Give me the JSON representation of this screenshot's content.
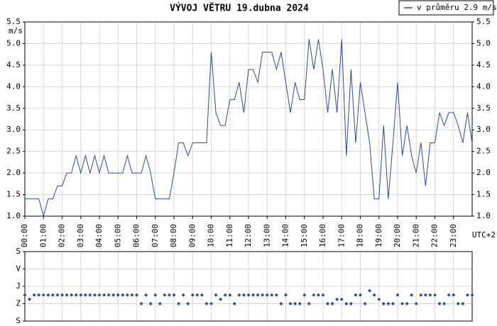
{
  "chart_data": [
    {
      "type": "line",
      "title": "VÝVOJ VĚTRU  19.dubna 2024",
      "y_unit": "m/s",
      "x_label": "UTC+2",
      "x": [
        0,
        0.25,
        0.5,
        0.75,
        1,
        1.25,
        1.5,
        1.75,
        2,
        2.25,
        2.5,
        2.75,
        3,
        3.25,
        3.5,
        3.75,
        4,
        4.25,
        4.5,
        4.75,
        5,
        5.25,
        5.5,
        5.75,
        6,
        6.25,
        6.5,
        6.75,
        7,
        7.25,
        7.5,
        7.75,
        8,
        8.25,
        8.5,
        8.75,
        9,
        9.25,
        9.5,
        9.75,
        10,
        10.25,
        10.5,
        10.75,
        11,
        11.25,
        11.5,
        11.75,
        12,
        12.25,
        12.5,
        12.75,
        13,
        13.25,
        13.5,
        13.75,
        14,
        14.25,
        14.5,
        14.75,
        15,
        15.25,
        15.5,
        15.75,
        16,
        16.25,
        16.5,
        16.75,
        17,
        17.25,
        17.5,
        17.75,
        18,
        18.25,
        18.5,
        18.75,
        19,
        19.25,
        19.5,
        19.75,
        20,
        20.25,
        20.5,
        20.75,
        21,
        21.25,
        21.5,
        21.75,
        22,
        22.25,
        22.5,
        22.75,
        23,
        23.25,
        23.5,
        23.75,
        24
      ],
      "series": [
        {
          "name": "v průměru 2.9 m/s",
          "color": "#2a4a9c",
          "values": [
            1.4,
            1.4,
            1.4,
            1.4,
            1.0,
            1.4,
            1.4,
            1.7,
            1.7,
            2.0,
            2.0,
            2.4,
            2.0,
            2.4,
            2.0,
            2.4,
            2.0,
            2.4,
            2.0,
            2.0,
            2.0,
            2.0,
            2.4,
            2.0,
            2.0,
            2.0,
            2.4,
            2.0,
            1.4,
            1.4,
            1.4,
            1.4,
            2.0,
            2.7,
            2.7,
            2.4,
            2.7,
            2.7,
            2.7,
            2.7,
            4.8,
            3.4,
            3.1,
            3.1,
            3.7,
            3.7,
            4.1,
            3.4,
            4.4,
            4.4,
            4.1,
            4.8,
            4.8,
            4.8,
            4.4,
            4.8,
            4.1,
            3.4,
            4.1,
            3.7,
            3.7,
            5.1,
            4.4,
            5.1,
            4.4,
            3.4,
            4.4,
            3.4,
            5.1,
            2.4,
            4.4,
            2.7,
            4.1,
            3.4,
            2.7,
            1.4,
            1.4,
            3.1,
            1.4,
            2.7,
            4.1,
            2.4,
            3.1,
            2.4,
            2.0,
            2.7,
            1.7,
            2.7,
            2.7,
            3.4,
            3.1,
            3.4,
            3.4,
            3.1,
            2.7,
            3.4,
            2.7
          ]
        }
      ],
      "xlim": [
        0,
        24
      ],
      "xticks": [
        {
          "value": 0,
          "label": "00:00"
        },
        {
          "value": 1,
          "label": "01:00"
        },
        {
          "value": 2,
          "label": "02:00"
        },
        {
          "value": 3,
          "label": "03:00"
        },
        {
          "value": 4,
          "label": "04:00"
        },
        {
          "value": 5,
          "label": "05:00"
        },
        {
          "value": 6,
          "label": "06:00"
        },
        {
          "value": 7,
          "label": "07:00"
        },
        {
          "value": 8,
          "label": "08:00"
        },
        {
          "value": 9,
          "label": "09:00"
        },
        {
          "value": 10,
          "label": "10:00"
        },
        {
          "value": 11,
          "label": "11:00"
        },
        {
          "value": 12,
          "label": "12:00"
        },
        {
          "value": 13,
          "label": "13:00"
        },
        {
          "value": 14,
          "label": "14:00"
        },
        {
          "value": 15,
          "label": "15:00"
        },
        {
          "value": 16,
          "label": "16:00"
        },
        {
          "value": 17,
          "label": "17:00"
        },
        {
          "value": 18,
          "label": "18:00"
        },
        {
          "value": 19,
          "label": "19:00"
        },
        {
          "value": 20,
          "label": "20:00"
        },
        {
          "value": 21,
          "label": "21:00"
        },
        {
          "value": 22,
          "label": "22:00"
        },
        {
          "value": 23,
          "label": "23:00"
        }
      ],
      "ylim": [
        1,
        5.5
      ],
      "yticks": [
        {
          "value": 1,
          "label": "1.0"
        },
        {
          "value": 1.5,
          "label": "1.5"
        },
        {
          "value": 2,
          "label": "2.0"
        },
        {
          "value": 2.5,
          "label": "2.5"
        },
        {
          "value": 3,
          "label": "3.0"
        },
        {
          "value": 3.5,
          "label": "3.5"
        },
        {
          "value": 4,
          "label": "4.0"
        },
        {
          "value": 4.5,
          "label": "4.5"
        },
        {
          "value": 5,
          "label": "5.0"
        },
        {
          "value": 5.5,
          "label": "5.5"
        }
      ],
      "grid": true,
      "legend": "top-right"
    },
    {
      "type": "scatter",
      "x": [
        0,
        0.25,
        0.5,
        0.75,
        1,
        1.25,
        1.5,
        1.75,
        2,
        2.25,
        2.5,
        2.75,
        3,
        3.25,
        3.5,
        3.75,
        4,
        4.25,
        4.5,
        4.75,
        5,
        5.25,
        5.5,
        5.75,
        6,
        6.25,
        6.5,
        6.75,
        7,
        7.25,
        7.5,
        7.75,
        8,
        8.25,
        8.5,
        8.75,
        9,
        9.25,
        9.5,
        9.75,
        10,
        10.25,
        10.5,
        10.75,
        11,
        11.25,
        11.5,
        11.75,
        12,
        12.25,
        12.5,
        12.75,
        13,
        13.25,
        13.5,
        13.75,
        14,
        14.25,
        14.5,
        14.75,
        15,
        15.25,
        15.5,
        15.75,
        16,
        16.25,
        16.5,
        16.75,
        17,
        17.25,
        17.5,
        17.75,
        18,
        18.25,
        18.5,
        18.75,
        19,
        19.25,
        19.5,
        19.75,
        20,
        20.25,
        20.5,
        20.75,
        21,
        21.25,
        21.5,
        21.75,
        22,
        22.25,
        22.5,
        22.75,
        23,
        23.25,
        23.5,
        23.75,
        24
      ],
      "color": "#2a4a9c",
      "values": [
        225,
        247.5,
        225,
        225,
        225,
        225,
        225,
        225,
        225,
        225,
        225,
        225,
        225,
        225,
        225,
        225,
        225,
        225,
        225,
        225,
        225,
        225,
        225,
        225,
        225,
        270,
        225,
        270,
        225,
        270,
        225,
        225,
        225,
        270,
        225,
        270,
        225,
        225,
        225,
        270,
        270,
        225,
        247.5,
        225,
        225,
        270,
        225,
        225,
        225,
        225,
        225,
        225,
        225,
        225,
        225,
        270,
        225,
        270,
        270,
        270,
        225,
        270,
        225,
        225,
        225,
        270,
        270,
        247.5,
        247.5,
        270,
        270,
        225,
        225,
        270,
        202.5,
        225,
        247.5,
        270,
        270,
        270,
        225,
        270,
        270,
        225,
        270,
        225,
        225,
        225,
        225,
        270,
        270,
        225,
        225,
        270,
        270,
        225,
        225
      ],
      "xlim": [
        0,
        24
      ],
      "ylim": [
        0,
        360
      ],
      "y_inverted": true,
      "yticks": [
        {
          "value": 0,
          "label": "S"
        },
        {
          "value": 90,
          "label": "V"
        },
        {
          "value": 180,
          "label": "J"
        },
        {
          "value": 270,
          "label": "Z"
        },
        {
          "value": 360,
          "label": "S"
        }
      ],
      "grid": true
    }
  ]
}
